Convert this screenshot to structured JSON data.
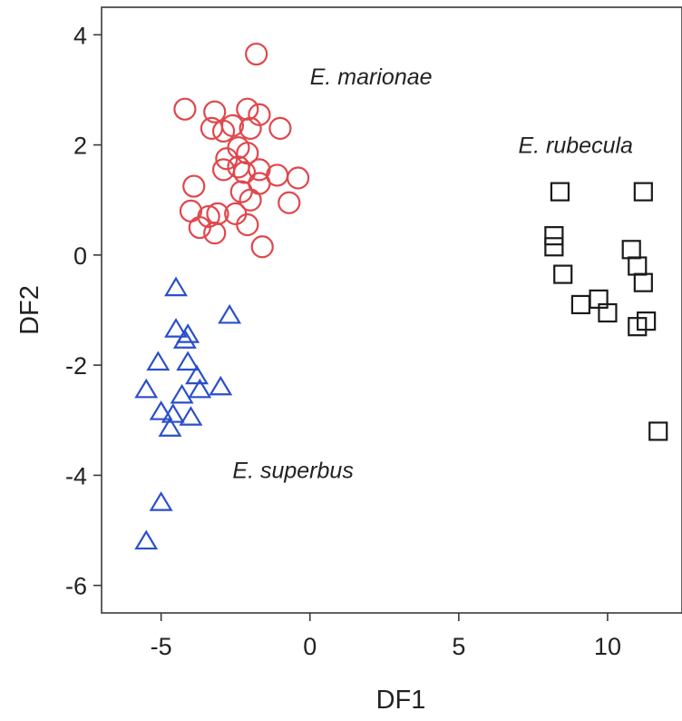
{
  "chart_data": {
    "type": "scatter",
    "xlabel": "DF1",
    "ylabel": "DF2",
    "xlim": [
      -7,
      12.5
    ],
    "ylim": [
      -6.5,
      4.5
    ],
    "xticks": [
      -5,
      0,
      5,
      10
    ],
    "yticks": [
      4,
      2,
      0,
      -2,
      -4,
      -6
    ],
    "grid": false,
    "legend": "none",
    "series": [
      {
        "name": "E. marionae",
        "marker": "circle",
        "color": "#e0474c",
        "points": [
          [
            -1.8,
            3.65
          ],
          [
            -4.2,
            2.65
          ],
          [
            -3.2,
            2.6
          ],
          [
            -2.1,
            2.65
          ],
          [
            -1.7,
            2.55
          ],
          [
            -2.6,
            2.35
          ],
          [
            -3.3,
            2.3
          ],
          [
            -2.0,
            2.3
          ],
          [
            -1.0,
            2.3
          ],
          [
            -2.9,
            2.25
          ],
          [
            -2.4,
            1.95
          ],
          [
            -2.1,
            1.85
          ],
          [
            -2.8,
            1.75
          ],
          [
            -2.4,
            1.6
          ],
          [
            -1.7,
            1.55
          ],
          [
            -2.9,
            1.55
          ],
          [
            -2.2,
            1.5
          ],
          [
            -1.1,
            1.45
          ],
          [
            -0.4,
            1.4
          ],
          [
            -1.7,
            1.3
          ],
          [
            -3.9,
            1.25
          ],
          [
            -2.3,
            1.15
          ],
          [
            -2.0,
            1.0
          ],
          [
            -0.7,
            0.95
          ],
          [
            -4.0,
            0.8
          ],
          [
            -3.1,
            0.75
          ],
          [
            -2.5,
            0.75
          ],
          [
            -3.4,
            0.7
          ],
          [
            -3.7,
            0.5
          ],
          [
            -2.1,
            0.55
          ],
          [
            -3.2,
            0.4
          ],
          [
            -1.6,
            0.15
          ]
        ]
      },
      {
        "name": "E. rubecula",
        "marker": "square",
        "color": "#1a1a1a",
        "points": [
          [
            8.4,
            1.15
          ],
          [
            11.2,
            1.15
          ],
          [
            8.2,
            0.35
          ],
          [
            8.2,
            0.15
          ],
          [
            10.8,
            0.1
          ],
          [
            11.0,
            -0.2
          ],
          [
            8.5,
            -0.35
          ],
          [
            11.2,
            -0.5
          ],
          [
            9.7,
            -0.8
          ],
          [
            9.1,
            -0.9
          ],
          [
            10.0,
            -1.05
          ],
          [
            11.3,
            -1.2
          ],
          [
            11.0,
            -1.3
          ],
          [
            11.7,
            -3.2
          ]
        ]
      },
      {
        "name": "E. superbus",
        "marker": "triangle",
        "color": "#2a4fc9",
        "points": [
          [
            -4.5,
            -0.6
          ],
          [
            -2.7,
            -1.1
          ],
          [
            -4.5,
            -1.35
          ],
          [
            -4.1,
            -1.45
          ],
          [
            -4.2,
            -1.55
          ],
          [
            -5.1,
            -1.95
          ],
          [
            -4.1,
            -1.95
          ],
          [
            -3.8,
            -2.2
          ],
          [
            -3.0,
            -2.4
          ],
          [
            -5.5,
            -2.45
          ],
          [
            -3.7,
            -2.45
          ],
          [
            -4.3,
            -2.55
          ],
          [
            -5.0,
            -2.85
          ],
          [
            -4.6,
            -2.9
          ],
          [
            -4.0,
            -2.95
          ],
          [
            -4.7,
            -3.15
          ],
          [
            -5.0,
            -4.5
          ],
          [
            -5.5,
            -5.2
          ]
        ]
      }
    ],
    "annotations": [
      {
        "text": "E. marionae",
        "x": 0,
        "y": 3.1,
        "anchor": "start"
      },
      {
        "text": "E. rubecula",
        "x": 7.0,
        "y": 1.85,
        "anchor": "start"
      },
      {
        "text": "E. superbus",
        "x": -2.6,
        "y": -4.05,
        "anchor": "start"
      }
    ]
  }
}
